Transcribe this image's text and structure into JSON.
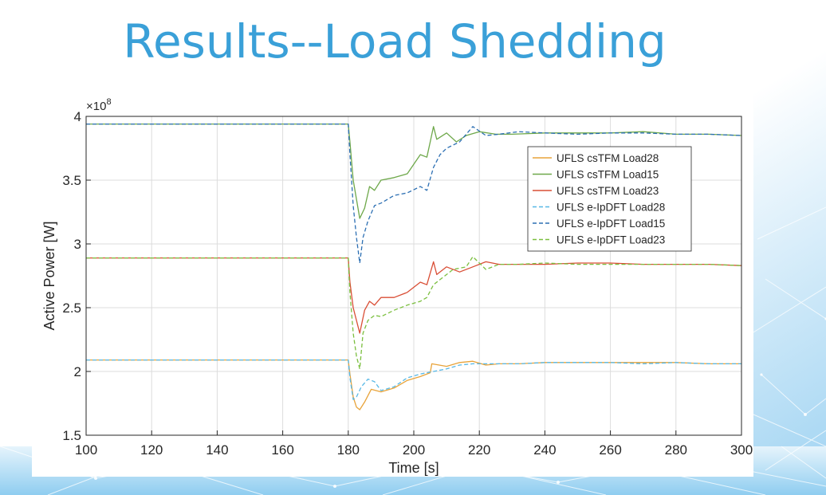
{
  "slide": {
    "title": "Results--Load Shedding"
  },
  "colors": {
    "title": "#3aa0d8",
    "background_accent": "#bfe3f7"
  },
  "chart_data": {
    "type": "line",
    "title": "",
    "xlabel": "Time [s]",
    "ylabel": "Active Power [W]",
    "y_exponent_label": "×10^8",
    "y_exponent_base": "×10",
    "y_exponent_power": "8",
    "xlim": [
      100,
      300
    ],
    "ylim": [
      1.5,
      4.0
    ],
    "x_ticks": [
      100,
      120,
      140,
      160,
      180,
      200,
      220,
      240,
      260,
      280,
      300
    ],
    "y_ticks": [
      1.5,
      2.0,
      2.5,
      3.0,
      3.5,
      4.0
    ],
    "x_tick_labels": [
      "100",
      "120",
      "140",
      "160",
      "180",
      "200",
      "220",
      "240",
      "260",
      "280",
      "300"
    ],
    "y_tick_labels": [
      "1.5",
      "2",
      "2.5",
      "3",
      "3.5",
      "4"
    ],
    "grid": true,
    "legend_position": "top-right",
    "series": [
      {
        "name": "UFLS csTFM Load28",
        "color": "#e8a33a",
        "dash": "solid",
        "x": [
          100,
          180,
          180.5,
          181.5,
          182.5,
          183.5,
          185,
          187,
          190,
          194,
          198,
          202,
          205,
          205.5,
          210,
          214,
          218,
          222,
          226,
          232,
          240,
          250,
          260,
          270,
          280,
          290,
          300
        ],
        "y": [
          2.09,
          2.09,
          1.98,
          1.8,
          1.72,
          1.7,
          1.76,
          1.86,
          1.84,
          1.87,
          1.93,
          1.96,
          1.99,
          2.06,
          2.04,
          2.07,
          2.08,
          2.05,
          2.06,
          2.06,
          2.07,
          2.07,
          2.07,
          2.07,
          2.07,
          2.06,
          2.06
        ]
      },
      {
        "name": "UFLS csTFM Load15",
        "color": "#6ea84a",
        "dash": "solid",
        "x": [
          100,
          180,
          180.5,
          181.5,
          182.5,
          183.5,
          185,
          186.5,
          188,
          190,
          194,
          198,
          202,
          204,
          205,
          206,
          207,
          210,
          213,
          216,
          220,
          225,
          230,
          240,
          250,
          260,
          270,
          280,
          290,
          300
        ],
        "y": [
          3.94,
          3.94,
          3.8,
          3.5,
          3.35,
          3.2,
          3.28,
          3.45,
          3.42,
          3.5,
          3.52,
          3.55,
          3.7,
          3.68,
          3.8,
          3.92,
          3.82,
          3.87,
          3.8,
          3.85,
          3.88,
          3.86,
          3.86,
          3.87,
          3.87,
          3.87,
          3.88,
          3.86,
          3.86,
          3.85
        ]
      },
      {
        "name": "UFLS csTFM Load23",
        "color": "#d94e35",
        "dash": "solid",
        "x": [
          100,
          180,
          180.5,
          181.5,
          182.5,
          183.5,
          185,
          186.5,
          188,
          190,
          194,
          198,
          202,
          204,
          206,
          207,
          210,
          214,
          218,
          222,
          226,
          232,
          240,
          250,
          260,
          270,
          280,
          290,
          300
        ],
        "y": [
          2.89,
          2.89,
          2.7,
          2.5,
          2.4,
          2.3,
          2.48,
          2.55,
          2.52,
          2.58,
          2.58,
          2.62,
          2.7,
          2.68,
          2.86,
          2.76,
          2.82,
          2.78,
          2.82,
          2.86,
          2.84,
          2.84,
          2.84,
          2.85,
          2.85,
          2.84,
          2.84,
          2.84,
          2.83
        ]
      },
      {
        "name": "UFLS e-IpDFT Load28",
        "color": "#57b8e6",
        "dash": "dashed",
        "x": [
          100,
          180,
          180.5,
          181.5,
          182.5,
          184,
          186,
          188,
          190,
          194,
          198,
          202,
          206,
          210,
          214,
          218,
          222,
          226,
          232,
          240,
          250,
          260,
          270,
          280,
          290,
          300
        ],
        "y": [
          2.09,
          2.09,
          1.95,
          1.78,
          1.8,
          1.88,
          1.94,
          1.92,
          1.85,
          1.88,
          1.95,
          1.98,
          2.0,
          2.02,
          2.05,
          2.06,
          2.06,
          2.06,
          2.06,
          2.07,
          2.07,
          2.07,
          2.06,
          2.07,
          2.06,
          2.06
        ]
      },
      {
        "name": "UFLS e-IpDFT Load15",
        "color": "#2c6fb3",
        "dash": "dashed",
        "x": [
          100,
          180,
          180.5,
          181.5,
          182.5,
          183.5,
          184.5,
          186,
          188,
          190,
          194,
          198,
          202,
          204,
          206,
          208,
          210,
          214,
          218,
          222,
          226,
          232,
          240,
          250,
          260,
          270,
          280,
          290,
          300
        ],
        "y": [
          3.94,
          3.94,
          3.7,
          3.3,
          3.05,
          2.85,
          3.05,
          3.18,
          3.3,
          3.32,
          3.38,
          3.4,
          3.45,
          3.42,
          3.6,
          3.7,
          3.75,
          3.8,
          3.92,
          3.85,
          3.86,
          3.88,
          3.87,
          3.86,
          3.87,
          3.87,
          3.86,
          3.86,
          3.85
        ]
      },
      {
        "name": "UFLS e-IpDFT Load23",
        "color": "#7bbf3f",
        "dash": "dashed",
        "x": [
          100,
          180,
          180.5,
          181.5,
          182.5,
          183.5,
          184.5,
          186,
          188,
          190,
          194,
          198,
          202,
          204,
          206,
          208,
          212,
          216,
          218,
          222,
          226,
          232,
          240,
          250,
          260,
          270,
          280,
          290,
          300
        ],
        "y": [
          2.89,
          2.89,
          2.62,
          2.3,
          2.12,
          2.02,
          2.3,
          2.4,
          2.44,
          2.43,
          2.48,
          2.52,
          2.55,
          2.58,
          2.68,
          2.72,
          2.8,
          2.82,
          2.9,
          2.8,
          2.84,
          2.84,
          2.85,
          2.84,
          2.84,
          2.84,
          2.84,
          2.84,
          2.83
        ]
      }
    ]
  }
}
